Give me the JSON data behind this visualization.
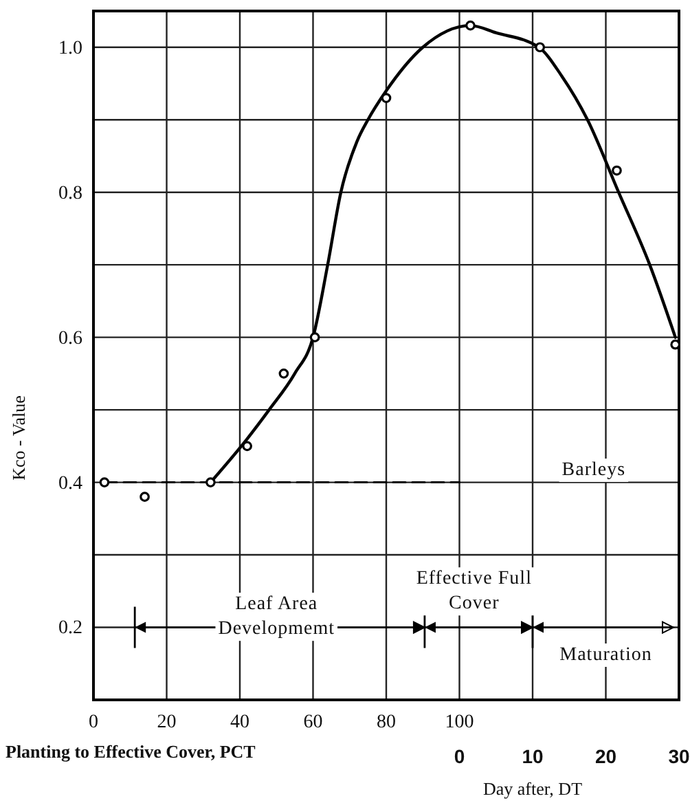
{
  "chart_data": {
    "type": "scatter",
    "xlabel": "Planting to Effective Cover, PCT",
    "x2label": "Day after, DT",
    "ylabel": "Kco - Value",
    "xlim": [
      0,
      160
    ],
    "xticks": [
      0,
      20,
      40,
      60,
      80,
      100,
      {
        "value": 120,
        "label": null
      },
      {
        "value": 140,
        "label": null
      },
      {
        "value": 160,
        "label": null
      }
    ],
    "x2lim": [
      -50,
      30
    ],
    "x2ticks": [
      0,
      10,
      20,
      30
    ],
    "ylim": [
      0.1,
      1.05
    ],
    "yticks": [
      {
        "value": 0.2,
        "label": "0.2"
      },
      {
        "value": 0.3,
        "label": null
      },
      {
        "value": 0.4,
        "label": "0.4"
      },
      {
        "value": 0.5,
        "label": null
      },
      {
        "value": 0.6,
        "label": "0.6"
      },
      {
        "value": 0.7,
        "label": null
      },
      {
        "value": 0.8,
        "label": "0.8"
      },
      {
        "value": 0.9,
        "label": null
      },
      {
        "value": 1.0,
        "label": "1.0"
      }
    ],
    "grid": true,
    "series": [
      {
        "color": "#000000",
        "marker": "circle",
        "x": [
          3,
          14,
          32,
          42,
          52,
          60.5,
          80,
          103,
          122,
          143,
          159
        ],
        "values": [
          0.4,
          0.38,
          0.4,
          0.45,
          0.55,
          0.6,
          0.93,
          1.03,
          1.0,
          0.83,
          0.59
        ]
      },
      {
        "type": "line",
        "color": "#000000",
        "line_style": "solid",
        "x": [
          32,
          42,
          48,
          55,
          60,
          64,
          67.6,
          72,
          75,
          80,
          90,
          103,
          110,
          121.7,
          128,
          135,
          143.5,
          152,
          159
        ],
        "values": [
          0.4,
          0.46,
          0.5,
          0.55,
          0.6,
          0.7,
          0.8,
          0.87,
          0.9,
          0.94,
          1.0,
          1.03,
          1.02,
          1.0,
          0.96,
          0.9,
          0.8,
          0.7,
          0.6
        ]
      },
      {
        "type": "line",
        "color": "#000000",
        "line_style": "dashed",
        "x": [
          3,
          100
        ],
        "values": [
          0.4,
          0.4
        ]
      }
    ],
    "annotations": [
      "Barleys",
      "Leaf  Area\nDevelopmemt",
      "Effective Full\nCover",
      "Maturation"
    ]
  }
}
